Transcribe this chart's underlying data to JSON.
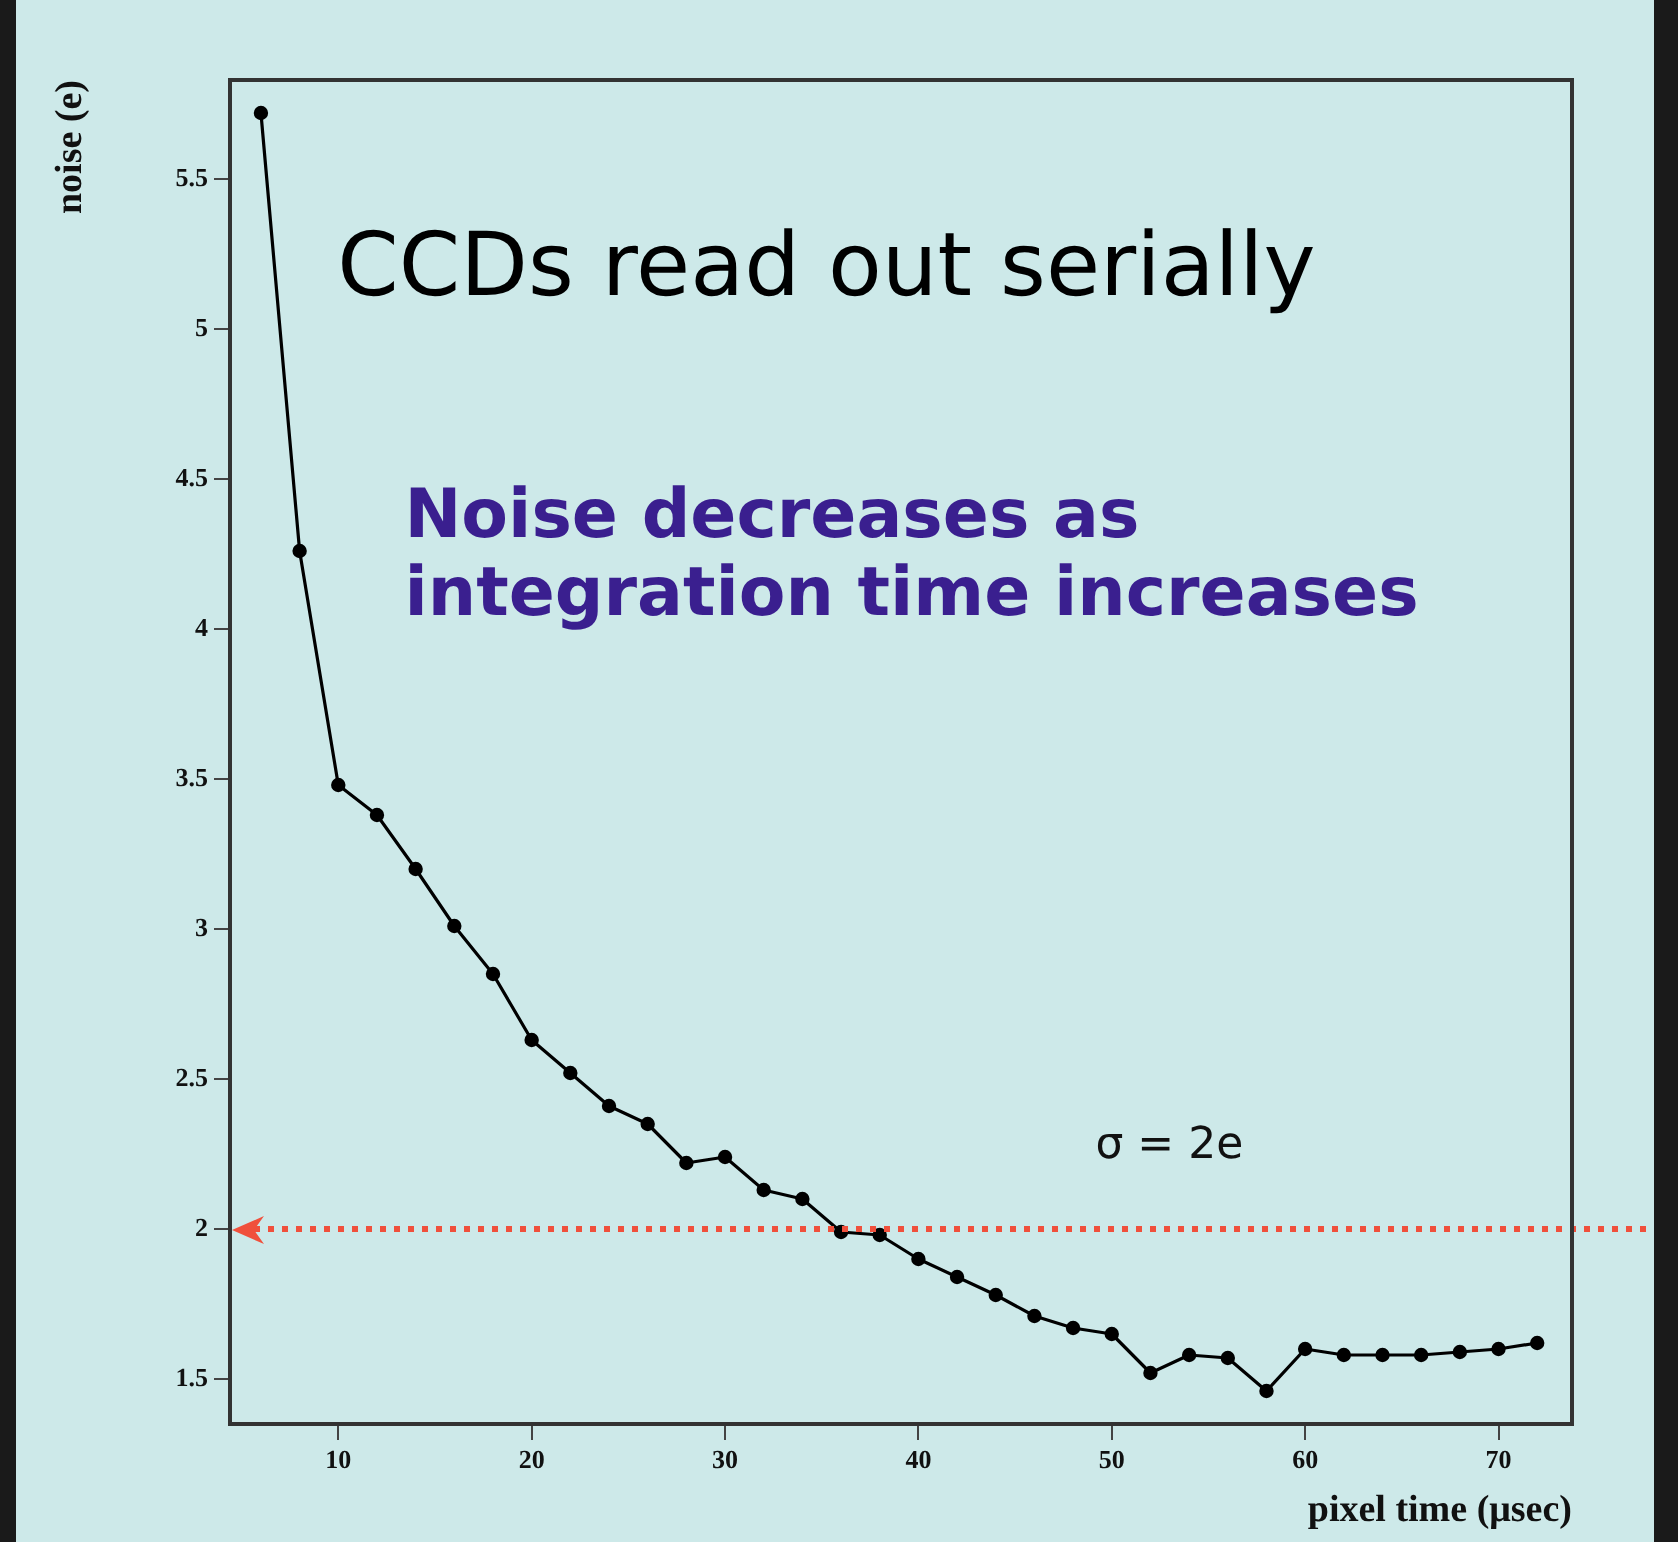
{
  "chart_data": {
    "type": "line",
    "xlabel": "pixel time (μsec)",
    "ylabel": "noise (e)",
    "annotations": [
      "CCDs read out serially",
      "Noise decreases as integration time increases"
    ],
    "x": [
      6,
      8,
      10,
      12,
      14,
      16,
      18,
      20,
      22,
      24,
      26,
      28,
      30,
      32,
      34,
      36,
      38,
      40,
      42,
      44,
      46,
      48,
      50,
      52,
      54,
      56,
      58,
      60,
      62,
      64,
      66,
      68,
      70,
      72
    ],
    "values": [
      5.72,
      4.26,
      3.48,
      3.38,
      3.2,
      3.01,
      2.85,
      2.63,
      2.52,
      2.41,
      2.35,
      2.22,
      2.24,
      2.13,
      2.1,
      1.99,
      1.98,
      1.9,
      1.84,
      1.78,
      1.71,
      1.67,
      1.65,
      1.52,
      1.58,
      1.57,
      1.46,
      1.6,
      1.58,
      1.58,
      1.58,
      1.59,
      1.6,
      1.62
    ],
    "color": "#000000",
    "marker": "circle",
    "line_style": "solid",
    "grid": false,
    "xlim": [
      4.4,
      73.8
    ],
    "ylim": [
      1.35,
      5.83
    ],
    "xticks": [
      10,
      20,
      30,
      40,
      50,
      60,
      70
    ],
    "yticks": [
      1.5,
      2,
      2.5,
      3,
      3.5,
      4,
      4.5,
      5,
      5.5
    ],
    "ref_lines": [
      {
        "axis": "y",
        "value": 2,
        "label": "σ = 2e",
        "color": "#f0503c",
        "line_style": "dotted"
      }
    ]
  }
}
